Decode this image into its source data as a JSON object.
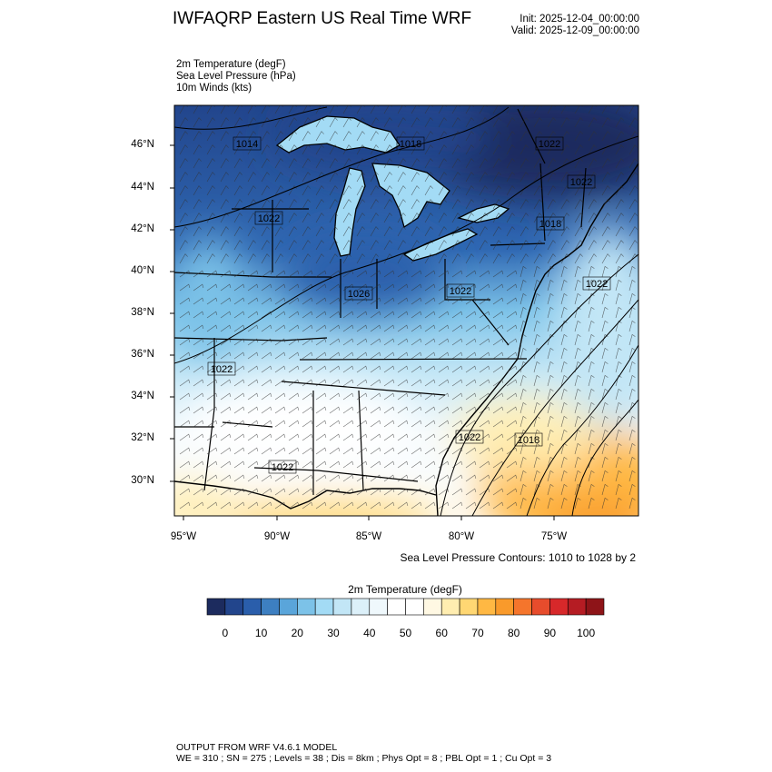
{
  "header": {
    "title": "IWFAQRP Eastern US Real Time WRF",
    "init": "Init: 2025-12-04_00:00:00",
    "valid": "Valid: 2025-12-09_00:00:00"
  },
  "fields": [
    "2m Temperature   (degF)",
    "Sea Level Pressure   (hPa)",
    "10m Winds   (kts)"
  ],
  "map": {
    "lat_labels": [
      "46°N",
      "44°N",
      "42°N",
      "40°N",
      "38°N",
      "36°N",
      "34°N",
      "32°N",
      "30°N"
    ],
    "lon_labels": [
      "95°W",
      "90°W",
      "85°W",
      "80°W",
      "75°W"
    ],
    "contour_labels": [
      "1014",
      "1018",
      "1022",
      "1022",
      "1018",
      "1022",
      "1026",
      "1022",
      "1022",
      "1022",
      "1022",
      "1018",
      "1022"
    ],
    "contour_note": "Sea Level Pressure Contours: 1010 to 1028 by 2"
  },
  "colorbar": {
    "title": "2m Temperature  (degF)",
    "labels": [
      "0",
      "10",
      "20",
      "30",
      "40",
      "50",
      "60",
      "70",
      "80",
      "90",
      "100"
    ],
    "colors": [
      "#1c2b5e",
      "#22458c",
      "#2a5eab",
      "#3d7fc1",
      "#5aa5da",
      "#7cc2e8",
      "#a3dbf5",
      "#c2e6f6",
      "#dcf0f9",
      "#eff8fc",
      "#ffffff",
      "#ffffff",
      "#fff8e3",
      "#ffedb0",
      "#ffd773",
      "#ffb843",
      "#f99a2b",
      "#f5752c",
      "#e74c2c",
      "#d7282a",
      "#b51c23",
      "#8e1418"
    ]
  },
  "footer": {
    "line1": "OUTPUT FROM WRF V4.6.1 MODEL",
    "line2": "WE = 310 ; SN = 275 ; Levels = 38 ; Dis = 8km ; Phys Opt = 8 ; PBL Opt = 1 ; Cu Opt = 3"
  }
}
